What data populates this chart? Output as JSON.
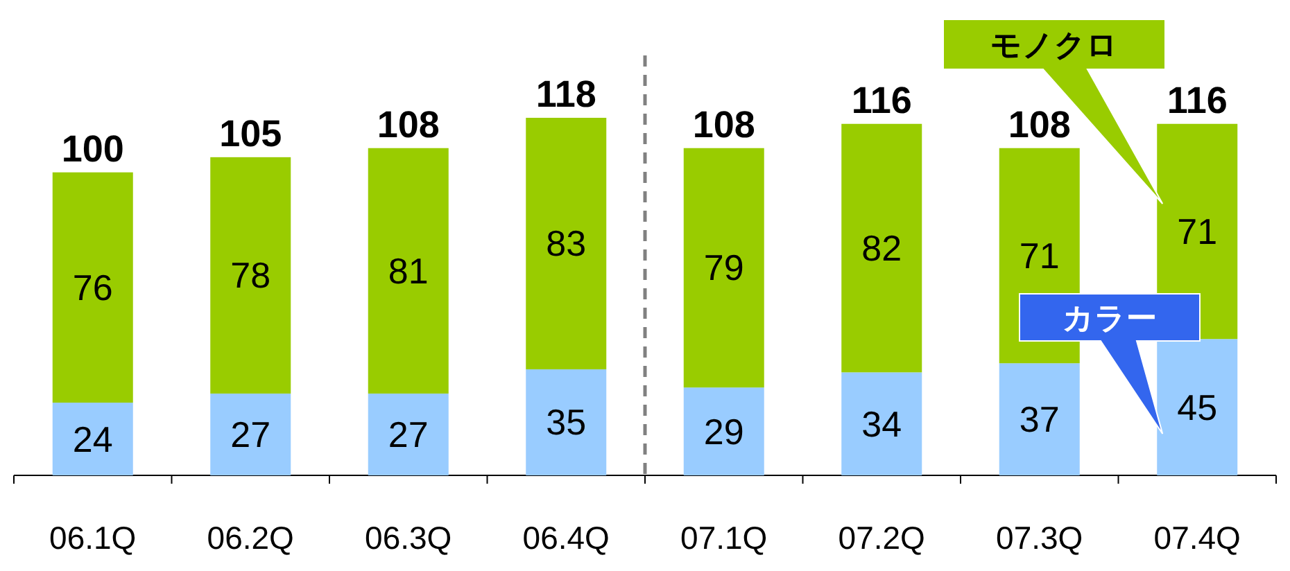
{
  "chart_data": {
    "type": "bar",
    "stacked": true,
    "categories": [
      "06.1Q",
      "06.2Q",
      "06.3Q",
      "06.4Q",
      "07.1Q",
      "07.2Q",
      "07.3Q",
      "07.4Q"
    ],
    "series": [
      {
        "name": "カラー",
        "color": "#99ccff",
        "values": [
          24,
          27,
          27,
          35,
          29,
          34,
          37,
          45
        ]
      },
      {
        "name": "モノクロ",
        "color": "#99cc00",
        "values": [
          76,
          78,
          81,
          83,
          79,
          82,
          71,
          71
        ]
      }
    ],
    "data_labels": true,
    "totals": [
      "100",
      "105",
      "108",
      "118",
      "108",
      "116",
      "108",
      "116"
    ]
  }
}
